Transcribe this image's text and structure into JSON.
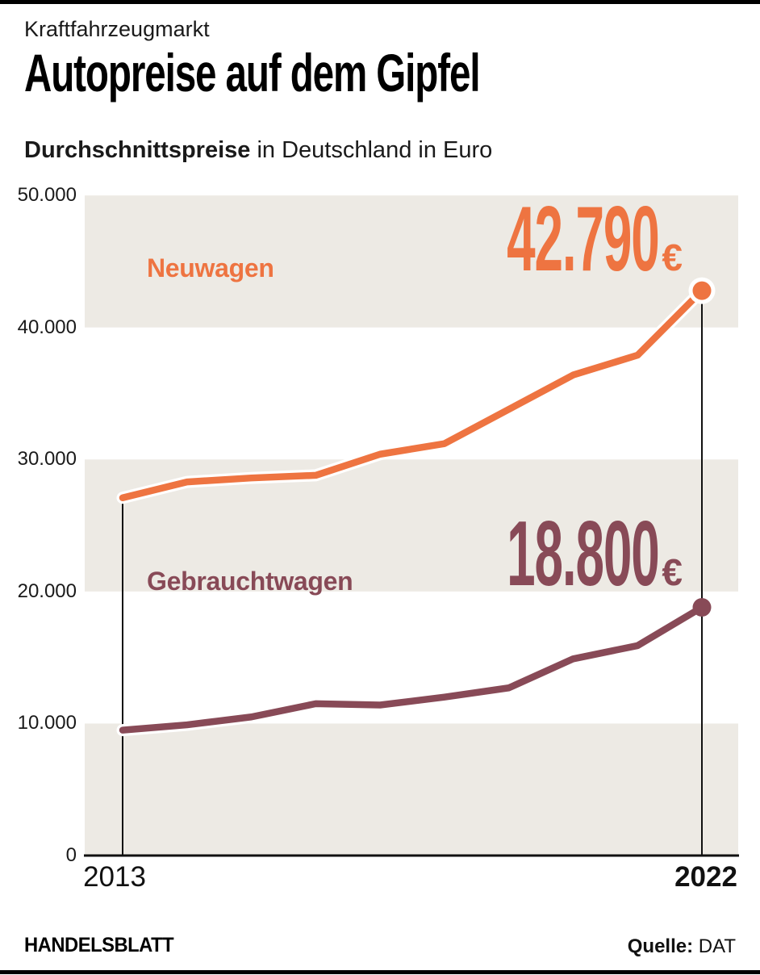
{
  "header": {
    "kicker": "Kraftfahrzeugmarkt",
    "title": "Autopreise auf dem Gipfel",
    "subtitle_bold": "Durchschnittspreise",
    "subtitle_rest": " in Deutschland in Euro"
  },
  "chart_data": {
    "type": "line",
    "x": [
      2013,
      2014,
      2015,
      2016,
      2017,
      2018,
      2019,
      2020,
      2021,
      2022
    ],
    "series": [
      {
        "name": "Neuwagen",
        "color": "#ee7441",
        "values": [
          27100,
          28300,
          28600,
          28800,
          30400,
          31200,
          33800,
          36400,
          37900,
          42790
        ],
        "end_label": "42.790",
        "currency": "€",
        "end_marker_halo": true
      },
      {
        "name": "Gebrauchtwagen",
        "color": "#884a57",
        "values": [
          9500,
          9900,
          10500,
          11500,
          11400,
          12000,
          12700,
          14900,
          15900,
          18800
        ],
        "end_label": "18.800",
        "currency": "€",
        "end_marker_halo": false
      }
    ],
    "ylim": [
      0,
      50000
    ],
    "yticks": [
      {
        "value": 0,
        "label": "0"
      },
      {
        "value": 10000,
        "label": "10.000"
      },
      {
        "value": 20000,
        "label": "20.000"
      },
      {
        "value": 30000,
        "label": "30.000"
      },
      {
        "value": 40000,
        "label": "40.000"
      },
      {
        "value": 50000,
        "label": "50.000"
      }
    ],
    "xticks": [
      {
        "value": 2013,
        "label": "2013",
        "bold": false
      },
      {
        "value": 2022,
        "label": "2022",
        "bold": true
      }
    ],
    "grid": "off",
    "legend_position": "inline-labels",
    "band_color": "#edeae4",
    "axis_color": "#111111",
    "line_casing_color": "#ffffff"
  },
  "footer": {
    "brand": "HANDELSBLATT",
    "source_label": "Quelle:",
    "source_value": "DAT"
  }
}
